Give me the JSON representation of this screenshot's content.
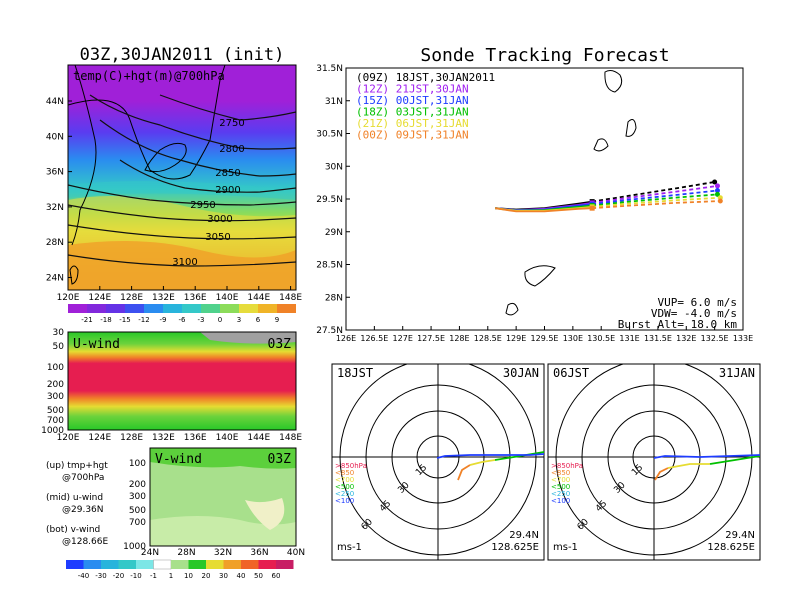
{
  "left": {
    "title": "03Z,30JAN2011 (init)",
    "map_title": "temp(C)+hgt(m)@700hPa",
    "map_lat_labels": [
      "44N",
      "40N",
      "36N",
      "32N",
      "28N",
      "24N"
    ],
    "map_lon_labels": [
      "120E",
      "124E",
      "128E",
      "132E",
      "136E",
      "140E",
      "144E",
      "148E"
    ],
    "contour_labels": [
      "2750",
      "2800",
      "2850",
      "2900",
      "2950",
      "3000",
      "3050",
      "3100"
    ],
    "temp_colorbar": [
      "-21",
      "-18",
      "-15",
      "-12",
      "-9",
      "-6",
      "-3",
      "0",
      "3",
      "6",
      "9"
    ],
    "u_label": "U-wind",
    "u_time": "03Z",
    "u_levels": [
      "30",
      "50",
      "100",
      "200",
      "300",
      "500",
      "700",
      "1000"
    ],
    "u_lon_labels": [
      "120E",
      "124E",
      "128E",
      "132E",
      "136E",
      "140E",
      "144E",
      "148E"
    ],
    "v_label": "V-wind",
    "v_time": "03Z",
    "v_levels": [
      "100",
      "200",
      "300",
      "500",
      "700",
      "1000"
    ],
    "v_lat_labels": [
      "24N",
      "28N",
      "32N",
      "36N",
      "40N"
    ],
    "wind_colorbar": [
      "-40",
      "-30",
      "-20",
      "-10",
      "-1",
      "1",
      "10",
      "20",
      "30",
      "40",
      "50",
      "60"
    ],
    "notes": [
      "(up) tmp+hgt",
      "@700hPa",
      "(mid) u-wind",
      "@29.36N",
      "(bot) v-wind",
      "@128.66E"
    ]
  },
  "right": {
    "title": "Sonde Tracking Forecast",
    "legend": [
      {
        "text": "(09Z)  18JST,30JAN2011",
        "color": "#000000"
      },
      {
        "text": "(12Z)  21JST,30JAN",
        "color": "#a020f0"
      },
      {
        "text": "(15Z)  00JST,31JAN",
        "color": "#1e3cff"
      },
      {
        "text": "(18Z)  03JST,31JAN",
        "color": "#00c000"
      },
      {
        "text": "(21Z)  06JST,31JAN",
        "color": "#e6dc32"
      },
      {
        "text": "(00Z)  09JST,31JAN",
        "color": "#f08228"
      }
    ],
    "y_labels": [
      "31.5N",
      "31N",
      "30.5N",
      "30N",
      "29.5N",
      "29N",
      "28.5N",
      "28N",
      "27.5N"
    ],
    "x_labels": [
      "126E",
      "126.5E",
      "127E",
      "127.5E",
      "128E",
      "128.5E",
      "129E",
      "129.5E",
      "130E",
      "130.5E",
      "131E",
      "131.5E",
      "132E",
      "132.5E",
      "133E"
    ],
    "params": [
      "VUP=  6.0  m/s",
      "VDW= -4.0  m/s",
      "Burst Alt=  18.0  km"
    ]
  },
  "hodographs": [
    {
      "time": "18JST",
      "date": "30JAN",
      "rings": [
        "15",
        "30",
        "45",
        "60"
      ],
      "levels": [
        ">850hPa",
        "<850",
        "<700",
        "<500",
        "<250",
        "<100"
      ],
      "lat": "29.4N",
      "lon": "128.625E",
      "unit": "ms-1"
    },
    {
      "time": "06JST",
      "date": "31JAN",
      "rings": [
        "15",
        "30",
        "45",
        "60"
      ],
      "levels": [
        ">850hPa",
        "<850",
        "<700",
        "<500",
        "<250",
        "<100"
      ],
      "lat": "29.4N",
      "lon": "128.625E",
      "unit": "ms-1"
    }
  ],
  "chart_data": {
    "type": "line",
    "title": "Sonde Tracking Forecast",
    "xlim": [
      126,
      133
    ],
    "ylim": [
      27.5,
      31.5
    ],
    "launch": {
      "lon": 128.63,
      "lat": 29.36
    },
    "series": [
      {
        "name": "(09Z)  18JST,30JAN2011",
        "color": "#000000",
        "ascent": [
          [
            128.63,
            29.36
          ],
          [
            129.0,
            29.34
          ],
          [
            129.5,
            29.36
          ],
          [
            130.1,
            29.43
          ],
          [
            130.34,
            29.46
          ]
        ],
        "descent": [
          [
            130.34,
            29.46
          ],
          [
            131.0,
            29.55
          ],
          [
            131.8,
            29.66
          ],
          [
            132.5,
            29.76
          ]
        ]
      },
      {
        "name": "(12Z)  21JST,30JAN",
        "color": "#a020f0",
        "ascent": [
          [
            128.63,
            29.36
          ],
          [
            129.0,
            29.33
          ],
          [
            129.5,
            29.35
          ],
          [
            130.1,
            29.41
          ],
          [
            130.34,
            29.44
          ]
        ],
        "descent": [
          [
            130.34,
            29.44
          ],
          [
            131.0,
            29.52
          ],
          [
            131.8,
            29.61
          ],
          [
            132.55,
            29.7
          ]
        ]
      },
      {
        "name": "(15Z)  00JST,31JAN",
        "color": "#1e3cff",
        "ascent": [
          [
            128.63,
            29.36
          ],
          [
            129.0,
            29.33
          ],
          [
            129.5,
            29.34
          ],
          [
            130.1,
            29.4
          ],
          [
            130.34,
            29.42
          ]
        ],
        "descent": [
          [
            130.34,
            29.42
          ],
          [
            131.0,
            29.49
          ],
          [
            131.8,
            29.56
          ],
          [
            132.55,
            29.63
          ]
        ]
      },
      {
        "name": "(18Z)  03JST,31JAN",
        "color": "#00c000",
        "ascent": [
          [
            128.63,
            29.36
          ],
          [
            129.0,
            29.32
          ],
          [
            129.5,
            29.33
          ],
          [
            130.1,
            29.38
          ],
          [
            130.34,
            29.4
          ]
        ],
        "descent": [
          [
            130.34,
            29.4
          ],
          [
            131.0,
            29.46
          ],
          [
            131.8,
            29.52
          ],
          [
            132.55,
            29.57
          ]
        ]
      },
      {
        "name": "(21Z)  06JST,31JAN",
        "color": "#e6dc32",
        "ascent": [
          [
            128.63,
            29.36
          ],
          [
            129.0,
            29.32
          ],
          [
            129.5,
            29.32
          ],
          [
            130.1,
            29.36
          ],
          [
            130.34,
            29.38
          ]
        ],
        "descent": [
          [
            130.34,
            29.38
          ],
          [
            131.0,
            29.43
          ],
          [
            131.8,
            29.48
          ],
          [
            132.6,
            29.52
          ]
        ]
      },
      {
        "name": "(00Z)  09JST,31JAN",
        "color": "#f08228",
        "ascent": [
          [
            128.63,
            29.36
          ],
          [
            129.0,
            29.31
          ],
          [
            129.5,
            29.31
          ],
          [
            130.1,
            29.35
          ],
          [
            130.34,
            29.36
          ]
        ],
        "descent": [
          [
            130.34,
            29.36
          ],
          [
            131.0,
            29.4
          ],
          [
            131.8,
            29.44
          ],
          [
            132.6,
            29.47
          ]
        ]
      }
    ]
  }
}
